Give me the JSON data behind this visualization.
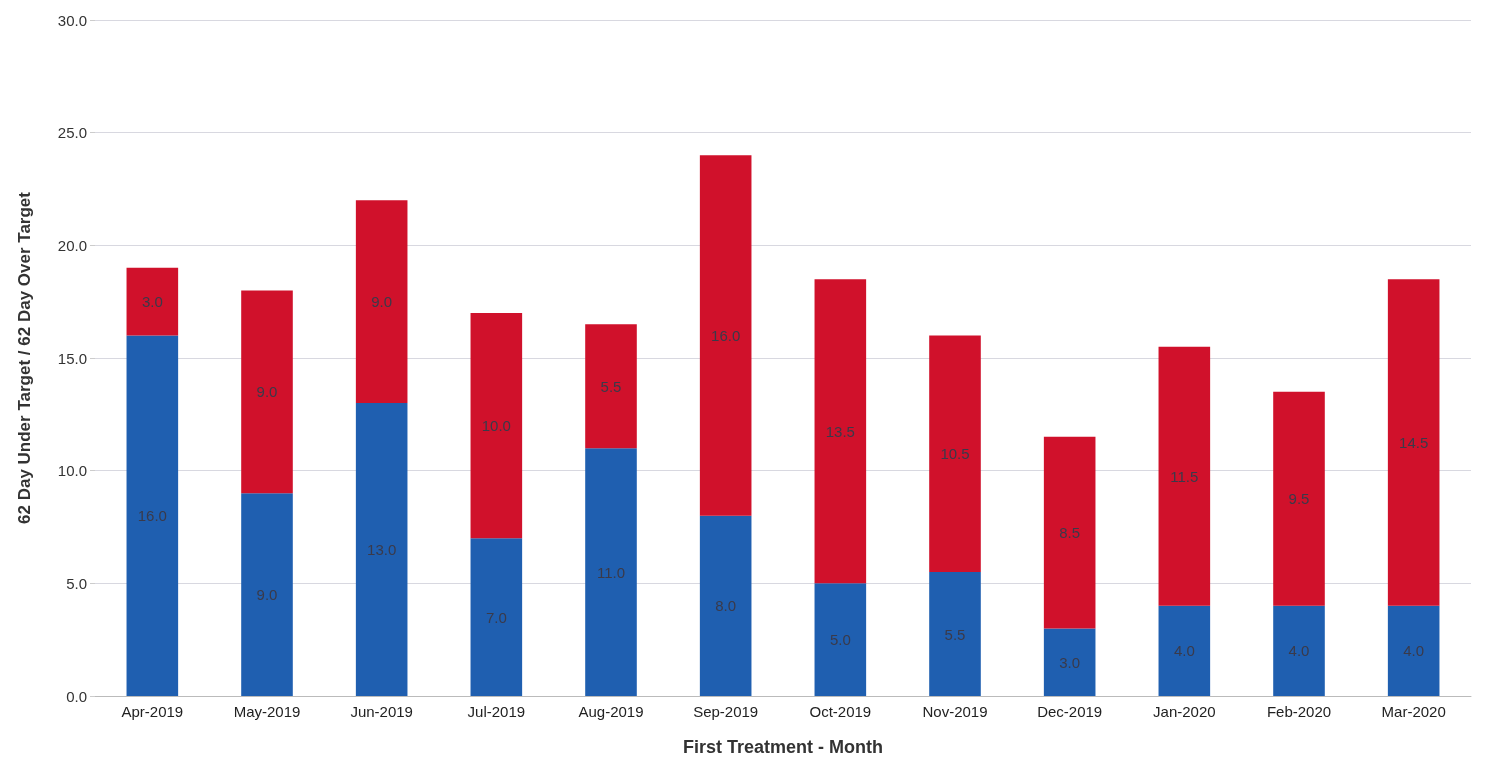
{
  "chart_data": {
    "type": "bar",
    "stacked": true,
    "xlabel": "First Treatment - Month",
    "ylabel": "62 Day Under Target / 62 Day Over Target",
    "categories": [
      "Apr-2019",
      "May-2019",
      "Jun-2019",
      "Jul-2019",
      "Aug-2019",
      "Sep-2019",
      "Oct-2019",
      "Nov-2019",
      "Dec-2019",
      "Jan-2020",
      "Feb-2020",
      "Mar-2020"
    ],
    "series": [
      {
        "color": "#1f5fb0",
        "values": [
          16,
          9,
          13,
          7,
          11,
          8,
          5,
          5.5,
          3,
          4,
          4,
          4
        ],
        "value_labels": [
          "16.0",
          "9.0",
          "13.0",
          "7.0",
          "11.0",
          "8.0",
          "5.0",
          "5.5",
          "3.0",
          "4.0",
          "4.0",
          "4.0"
        ]
      },
      {
        "color": "#d0112b",
        "values": [
          3,
          9,
          9,
          10,
          5.5,
          16,
          13.5,
          10.5,
          8.5,
          11.5,
          9.5,
          14.5
        ],
        "value_labels": [
          "3.0",
          "9.0",
          "9.0",
          "10.0",
          "5.5",
          "16.0",
          "13.5",
          "10.5",
          "8.5",
          "11.5",
          "9.5",
          "14.5"
        ]
      }
    ],
    "ylim": [
      0,
      30
    ],
    "yticks": [
      {
        "value": 0,
        "label": "0.0"
      },
      {
        "value": 5,
        "label": "5.0"
      },
      {
        "value": 10,
        "label": "10.0"
      },
      {
        "value": 15,
        "label": "15.0"
      },
      {
        "value": 20,
        "label": "20.0"
      },
      {
        "value": 25,
        "label": "25.0"
      },
      {
        "value": 30,
        "label": "30.0"
      }
    ],
    "grid": "y"
  }
}
